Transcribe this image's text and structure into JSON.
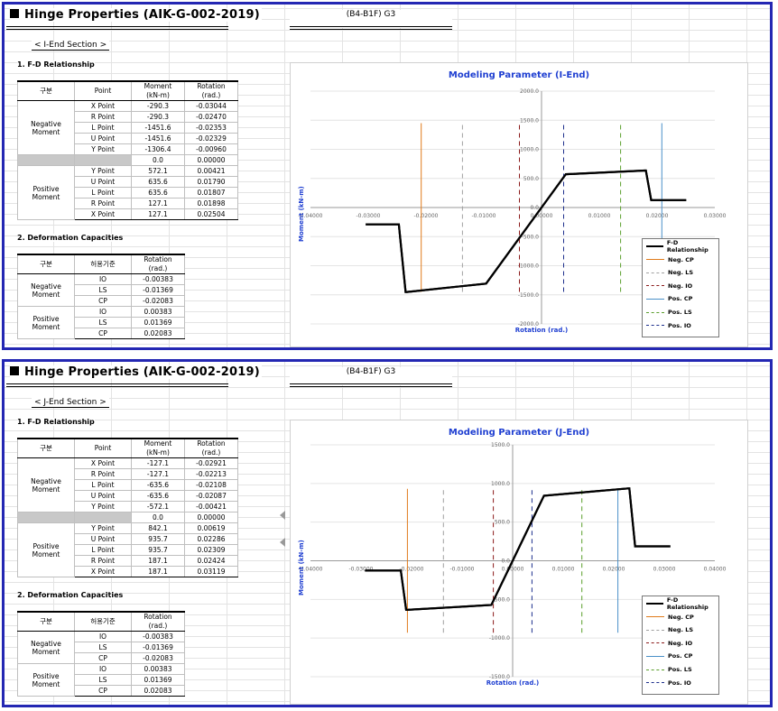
{
  "panels": [
    {
      "title": "Hinge Properties (AIK-G-002-2019)",
      "location": "(B4-B1F)  G3",
      "section": "< I-End Section >",
      "fd_heading": "1. F-D Relationship",
      "fd_headers": {
        "group": "구분",
        "point": "Point",
        "moment": "Moment",
        "moment_unit": "(kN-m)",
        "rotation": "Rotation",
        "rotation_unit": "(rad.)"
      },
      "negative_label": "Negative",
      "positive_label": "Positive",
      "moment_label": "Moment",
      "neg_rows": [
        {
          "point": "X Point",
          "moment": "-290.3",
          "rotation": "-0.03044"
        },
        {
          "point": "R Point",
          "moment": "-290.3",
          "rotation": "-0.02470"
        },
        {
          "point": "L Point",
          "moment": "-1451.6",
          "rotation": "-0.02353"
        },
        {
          "point": "U Point",
          "moment": "-1451.6",
          "rotation": "-0.02329"
        },
        {
          "point": "Y Point",
          "moment": "-1306.4",
          "rotation": "-0.00960"
        }
      ],
      "zero_row": {
        "moment": "0.0",
        "rotation": "0.00000"
      },
      "pos_rows": [
        {
          "point": "Y Point",
          "moment": "572.1",
          "rotation": "0.00421"
        },
        {
          "point": "U Point",
          "moment": "635.6",
          "rotation": "0.01790"
        },
        {
          "point": "L Point",
          "moment": "635.6",
          "rotation": "0.01807"
        },
        {
          "point": "R Point",
          "moment": "127.1",
          "rotation": "0.01898"
        },
        {
          "point": "X Point",
          "moment": "127.1",
          "rotation": "0.02504"
        }
      ],
      "dc_heading": "2. Deformation Capacities",
      "dc_headers": {
        "group": "구분",
        "criterion": "허용기준",
        "rotation": "Rotation",
        "rotation_unit": "(rad.)"
      },
      "dc_neg": [
        {
          "c": "IO",
          "v": "-0.00383"
        },
        {
          "c": "LS",
          "v": "-0.01369"
        },
        {
          "c": "CP",
          "v": "-0.02083"
        }
      ],
      "dc_pos": [
        {
          "c": "IO",
          "v": "0.00383"
        },
        {
          "c": "LS",
          "v": "0.01369"
        },
        {
          "c": "CP",
          "v": "0.02083"
        }
      ]
    },
    {
      "title": "Hinge Properties (AIK-G-002-2019)",
      "location": "(B4-B1F)  G3",
      "section": "< J-End Section >",
      "fd_heading": "1. F-D Relationship",
      "fd_headers": {
        "group": "구분",
        "point": "Point",
        "moment": "Moment",
        "moment_unit": "(kN-m)",
        "rotation": "Rotation",
        "rotation_unit": "(rad.)"
      },
      "negative_label": "Negative",
      "positive_label": "Positive",
      "moment_label": "Moment",
      "neg_rows": [
        {
          "point": "X Point",
          "moment": "-127.1",
          "rotation": "-0.02921"
        },
        {
          "point": "R Point",
          "moment": "-127.1",
          "rotation": "-0.02213"
        },
        {
          "point": "L Point",
          "moment": "-635.6",
          "rotation": "-0.02108"
        },
        {
          "point": "U Point",
          "moment": "-635.6",
          "rotation": "-0.02087"
        },
        {
          "point": "Y Point",
          "moment": "-572.1",
          "rotation": "-0.00421"
        }
      ],
      "zero_row": {
        "moment": "0.0",
        "rotation": "0.00000"
      },
      "pos_rows": [
        {
          "point": "Y Point",
          "moment": "842.1",
          "rotation": "0.00619"
        },
        {
          "point": "U Point",
          "moment": "935.7",
          "rotation": "0.02286"
        },
        {
          "point": "L Point",
          "moment": "935.7",
          "rotation": "0.02309"
        },
        {
          "point": "R Point",
          "moment": "187.1",
          "rotation": "0.02424"
        },
        {
          "point": "X Point",
          "moment": "187.1",
          "rotation": "0.03119"
        }
      ],
      "dc_heading": "2. Deformation Capacities",
      "dc_headers": {
        "group": "구분",
        "criterion": "허용기준",
        "rotation": "Rotation",
        "rotation_unit": "(rad.)"
      },
      "dc_neg": [
        {
          "c": "IO",
          "v": "-0.00383"
        },
        {
          "c": "LS",
          "v": "-0.01369"
        },
        {
          "c": "CP",
          "v": "-0.02083"
        }
      ],
      "dc_pos": [
        {
          "c": "IO",
          "v": "0.00383"
        },
        {
          "c": "LS",
          "v": "0.01369"
        },
        {
          "c": "CP",
          "v": "0.02083"
        }
      ]
    }
  ],
  "chart_data": [
    {
      "type": "line",
      "title": "Modeling Parameter (I-End)",
      "xlabel": "Rotation (rad.)",
      "ylabel": "Moment (kN-m)",
      "xlim": [
        -0.04,
        0.03
      ],
      "ylim": [
        -2000,
        2000
      ],
      "xticks": [
        -0.04,
        -0.03,
        -0.02,
        -0.01,
        0.0,
        0.01,
        0.02,
        0.03
      ],
      "xtick_labels": [
        "-0.04000",
        "-0.03000",
        "-0.02000",
        "-0.01000",
        "0.00000",
        "0.01000",
        "0.02000",
        "0.03000"
      ],
      "yticks": [
        2000,
        1500,
        1000,
        500,
        0,
        -500,
        -1000,
        -1500,
        -2000
      ],
      "ytick_labels": [
        "2000.0",
        "1500.0",
        "1000.0",
        "500.0",
        "0.0",
        "-500.0",
        "-1000.0",
        "-1500.0",
        "-2000.0"
      ],
      "grid": true,
      "legend_position": "bottom-right",
      "series": [
        {
          "name": "F-D Relationship",
          "color": "#000000",
          "style": "solid",
          "x": [
            -0.03044,
            -0.0247,
            -0.02353,
            -0.02329,
            -0.0096,
            0.0,
            0.00421,
            0.0179,
            0.01807,
            0.01898,
            0.02504
          ],
          "y": [
            -290.3,
            -290.3,
            -1451.6,
            -1451.6,
            -1306.4,
            0.0,
            572.1,
            635.6,
            635.6,
            127.1,
            127.1
          ]
        },
        {
          "name": "Neg. CP",
          "color": "#e07b1b",
          "style": "solid",
          "x": [
            -0.02083,
            -0.02083
          ],
          "y": [
            -1450,
            1450
          ]
        },
        {
          "name": "Neg. LS",
          "color": "#a0a0a0",
          "style": "dashed",
          "x": [
            -0.01369,
            -0.01369
          ],
          "y": [
            -1450,
            1450
          ]
        },
        {
          "name": "Neg. IO",
          "color": "#8b1a1a",
          "style": "dashed",
          "x": [
            -0.00383,
            -0.00383
          ],
          "y": [
            -1450,
            1450
          ]
        },
        {
          "name": "Pos. CP",
          "color": "#4a90c8",
          "style": "solid",
          "x": [
            0.02083,
            0.02083
          ],
          "y": [
            -1450,
            1450
          ]
        },
        {
          "name": "Pos. LS",
          "color": "#5a9e2b",
          "style": "dashed",
          "x": [
            0.01369,
            0.01369
          ],
          "y": [
            -1450,
            1450
          ]
        },
        {
          "name": "Pos. IO",
          "color": "#1c2e8c",
          "style": "dashed",
          "x": [
            0.00383,
            0.00383
          ],
          "y": [
            -1450,
            1450
          ]
        }
      ]
    },
    {
      "type": "line",
      "title": "Modeling Parameter (J-End)",
      "xlabel": "Rotation (rad.)",
      "ylabel": "Moment (kN-m)",
      "xlim": [
        -0.04,
        0.04
      ],
      "ylim": [
        -1500,
        1500
      ],
      "xticks": [
        -0.04,
        -0.03,
        -0.02,
        -0.01,
        0.0,
        0.01,
        0.02,
        0.03,
        0.04
      ],
      "xtick_labels": [
        "-0.04000",
        "-0.03000",
        "-0.02000",
        "-0.01000",
        "0.00000",
        "0.01000",
        "0.02000",
        "0.03000",
        "0.04000"
      ],
      "yticks": [
        1500,
        1000,
        500,
        0,
        -500,
        -1000,
        -1500
      ],
      "ytick_labels": [
        "1500.0",
        "1000.0",
        "500.0",
        "0.0",
        "-500.0",
        "-1000.0",
        "-1500.0"
      ],
      "grid": true,
      "legend_position": "bottom-right",
      "series": [
        {
          "name": "F-D Relationship",
          "color": "#000000",
          "style": "solid",
          "x": [
            -0.02921,
            -0.02213,
            -0.02108,
            -0.02087,
            -0.00421,
            0.0,
            0.00619,
            0.02286,
            0.02309,
            0.02424,
            0.03119
          ],
          "y": [
            -127.1,
            -127.1,
            -635.6,
            -635.6,
            -572.1,
            0.0,
            842.1,
            935.7,
            935.7,
            187.1,
            187.1
          ]
        },
        {
          "name": "Neg. CP",
          "color": "#e07b1b",
          "style": "solid",
          "x": [
            -0.02083,
            -0.02083
          ],
          "y": [
            -930,
            930
          ]
        },
        {
          "name": "Neg. LS",
          "color": "#a0a0a0",
          "style": "dashed",
          "x": [
            -0.01369,
            -0.01369
          ],
          "y": [
            -930,
            930
          ]
        },
        {
          "name": "Neg. IO",
          "color": "#8b1a1a",
          "style": "dashed",
          "x": [
            -0.00383,
            -0.00383
          ],
          "y": [
            -930,
            930
          ]
        },
        {
          "name": "Pos. CP",
          "color": "#4a90c8",
          "style": "solid",
          "x": [
            0.02083,
            0.02083
          ],
          "y": [
            -930,
            930
          ]
        },
        {
          "name": "Pos. LS",
          "color": "#5a9e2b",
          "style": "dashed",
          "x": [
            0.01369,
            0.01369
          ],
          "y": [
            -930,
            930
          ]
        },
        {
          "name": "Pos. IO",
          "color": "#1c2e8c",
          "style": "dashed",
          "x": [
            0.00383,
            0.00383
          ],
          "y": [
            -930,
            930
          ]
        }
      ]
    }
  ]
}
